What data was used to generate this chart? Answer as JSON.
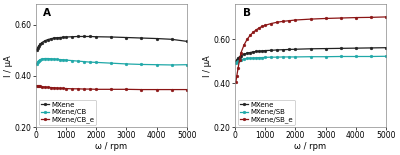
{
  "panel_A": {
    "title": "A",
    "xlabel": "ω / rpm",
    "ylabel": "I / μA",
    "xlim": [
      0,
      5000
    ],
    "ylim": [
      0.2,
      0.68
    ],
    "yticks": [
      0.2,
      0.4,
      0.6
    ],
    "ytick_labels": [
      "0.20",
      "0.40",
      "0.60"
    ],
    "xticks": [
      0,
      1000,
      2000,
      3000,
      4000,
      5000
    ],
    "series": [
      {
        "label": "MXene",
        "color": "#222222",
        "x": [
          30,
          60,
          100,
          150,
          200,
          300,
          400,
          500,
          600,
          700,
          800,
          900,
          1000,
          1200,
          1400,
          1600,
          1800,
          2000,
          2500,
          3000,
          3500,
          4000,
          4500,
          5000
        ],
        "y": [
          0.502,
          0.51,
          0.518,
          0.524,
          0.53,
          0.537,
          0.542,
          0.545,
          0.548,
          0.549,
          0.55,
          0.551,
          0.552,
          0.553,
          0.554,
          0.554,
          0.554,
          0.553,
          0.552,
          0.55,
          0.548,
          0.546,
          0.543,
          0.535
        ]
      },
      {
        "label": "MXene/CB",
        "color": "#20a8a8",
        "x": [
          30,
          60,
          100,
          150,
          200,
          300,
          400,
          500,
          600,
          700,
          800,
          900,
          1000,
          1200,
          1400,
          1600,
          1800,
          2000,
          2500,
          3000,
          3500,
          4000,
          4500,
          5000
        ],
        "y": [
          0.448,
          0.455,
          0.46,
          0.464,
          0.466,
          0.468,
          0.468,
          0.467,
          0.466,
          0.465,
          0.464,
          0.463,
          0.462,
          0.46,
          0.458,
          0.456,
          0.454,
          0.453,
          0.45,
          0.447,
          0.445,
          0.444,
          0.443,
          0.444
        ]
      },
      {
        "label": "MXene/CB_e",
        "color": "#8b1515",
        "x": [
          30,
          60,
          100,
          150,
          200,
          300,
          400,
          500,
          600,
          700,
          800,
          900,
          1000,
          1200,
          1400,
          1600,
          1800,
          2000,
          2500,
          3000,
          3500,
          4000,
          4500,
          5000
        ],
        "y": [
          0.362,
          0.361,
          0.36,
          0.359,
          0.358,
          0.357,
          0.356,
          0.355,
          0.354,
          0.353,
          0.352,
          0.352,
          0.351,
          0.35,
          0.35,
          0.349,
          0.349,
          0.348,
          0.348,
          0.348,
          0.347,
          0.347,
          0.347,
          0.347
        ]
      }
    ]
  },
  "panel_B": {
    "title": "B",
    "xlabel": "ω / rpm",
    "ylabel": "I / μA",
    "xlim": [
      0,
      5000
    ],
    "ylim": [
      0.2,
      0.76
    ],
    "yticks": [
      0.2,
      0.4,
      0.6
    ],
    "ytick_labels": [
      "0.20",
      "0.40",
      "0.60"
    ],
    "xticks": [
      0,
      1000,
      2000,
      3000,
      4000,
      5000
    ],
    "series": [
      {
        "label": "MXene",
        "color": "#222222",
        "x": [
          30,
          60,
          100,
          150,
          200,
          300,
          400,
          500,
          600,
          700,
          800,
          900,
          1000,
          1200,
          1400,
          1600,
          1800,
          2000,
          2500,
          3000,
          3500,
          4000,
          4500,
          5000
        ],
        "y": [
          0.5,
          0.508,
          0.515,
          0.521,
          0.526,
          0.533,
          0.537,
          0.54,
          0.543,
          0.545,
          0.546,
          0.547,
          0.549,
          0.55,
          0.552,
          0.553,
          0.554,
          0.555,
          0.557,
          0.558,
          0.559,
          0.56,
          0.561,
          0.562
        ]
      },
      {
        "label": "MXene/SB",
        "color": "#20a8a8",
        "x": [
          30,
          60,
          100,
          150,
          200,
          300,
          400,
          500,
          600,
          700,
          800,
          900,
          1000,
          1200,
          1400,
          1600,
          1800,
          2000,
          2500,
          3000,
          3500,
          4000,
          4500,
          5000
        ],
        "y": [
          0.492,
          0.496,
          0.5,
          0.504,
          0.507,
          0.511,
          0.513,
          0.514,
          0.515,
          0.516,
          0.517,
          0.517,
          0.518,
          0.519,
          0.519,
          0.52,
          0.52,
          0.52,
          0.521,
          0.521,
          0.522,
          0.522,
          0.522,
          0.523
        ]
      },
      {
        "label": "MXene/SB_e",
        "color": "#8b1515",
        "x": [
          30,
          60,
          100,
          150,
          200,
          300,
          400,
          500,
          600,
          700,
          800,
          900,
          1000,
          1200,
          1400,
          1600,
          1800,
          2000,
          2500,
          3000,
          3500,
          4000,
          4500,
          5000
        ],
        "y": [
          0.408,
          0.435,
          0.468,
          0.508,
          0.54,
          0.575,
          0.6,
          0.618,
          0.632,
          0.643,
          0.652,
          0.659,
          0.664,
          0.672,
          0.678,
          0.682,
          0.685,
          0.688,
          0.692,
          0.695,
          0.697,
          0.699,
          0.7,
          0.702
        ]
      }
    ]
  },
  "bg_color": "#ffffff",
  "marker": "o",
  "markersize": 2.0,
  "linewidth": 0.9,
  "legend_fontsize": 5.0,
  "label_fontsize": 6.0,
  "tick_fontsize": 5.5,
  "title_fontsize": 7.5
}
